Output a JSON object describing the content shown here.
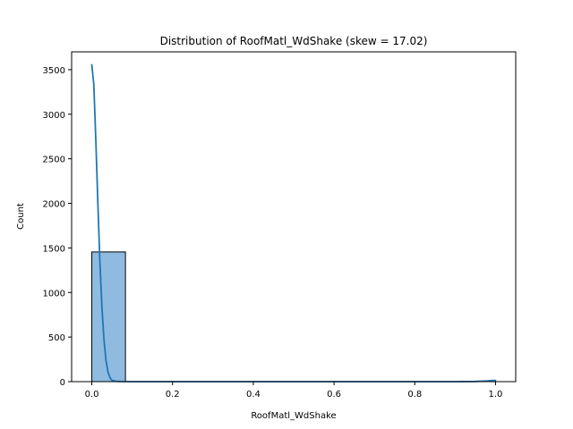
{
  "chart_data": {
    "type": "bar",
    "title": "Distribution of RoofMatl_WdShake (skew = 17.02)",
    "xlabel": "RoofMatl_WdShake",
    "ylabel": "Count",
    "xlim": [
      -0.05,
      1.05
    ],
    "ylim": [
      0,
      3700
    ],
    "x_ticks": [
      0.0,
      0.2,
      0.4,
      0.6,
      0.8,
      1.0
    ],
    "x_tick_labels": [
      "0.0",
      "0.2",
      "0.4",
      "0.6",
      "0.8",
      "1.0"
    ],
    "y_ticks": [
      0,
      500,
      1000,
      1500,
      2000,
      2500,
      3000,
      3500
    ],
    "y_tick_labels": [
      "0",
      "500",
      "1000",
      "1500",
      "2000",
      "2500",
      "3000",
      "3500"
    ],
    "bins": [
      {
        "x0": 0.0,
        "x1": 0.0833,
        "count": 1455
      },
      {
        "x0": 0.0833,
        "x1": 0.1667,
        "count": 0
      },
      {
        "x0": 0.1667,
        "x1": 0.25,
        "count": 0
      },
      {
        "x0": 0.25,
        "x1": 0.3333,
        "count": 0
      },
      {
        "x0": 0.3333,
        "x1": 0.4167,
        "count": 0
      },
      {
        "x0": 0.4167,
        "x1": 0.5,
        "count": 0
      },
      {
        "x0": 0.5,
        "x1": 0.5833,
        "count": 0
      },
      {
        "x0": 0.5833,
        "x1": 0.6667,
        "count": 0
      },
      {
        "x0": 0.6667,
        "x1": 0.75,
        "count": 0
      },
      {
        "x0": 0.75,
        "x1": 0.8333,
        "count": 0
      },
      {
        "x0": 0.8333,
        "x1": 0.9167,
        "count": 0
      },
      {
        "x0": 0.9167,
        "x1": 1.0,
        "count": 5
      }
    ],
    "kde": {
      "x": [
        0.0,
        0.005,
        0.01,
        0.015,
        0.02,
        0.025,
        0.03,
        0.035,
        0.04,
        0.045,
        0.05,
        0.06,
        0.07,
        0.1,
        0.3,
        0.6,
        0.9,
        0.95,
        0.98,
        0.99,
        1.0
      ],
      "y": [
        3555,
        3330,
        2700,
        2000,
        1350,
        840,
        480,
        240,
        110,
        45,
        15,
        4,
        1,
        0,
        0,
        0,
        0,
        2,
        8,
        12,
        14
      ]
    },
    "colors": {
      "bar_fill": "#8fbbe0",
      "bar_edge": "#000000",
      "kde_line": "#1f77b4"
    },
    "grid": false,
    "legend": "none"
  }
}
